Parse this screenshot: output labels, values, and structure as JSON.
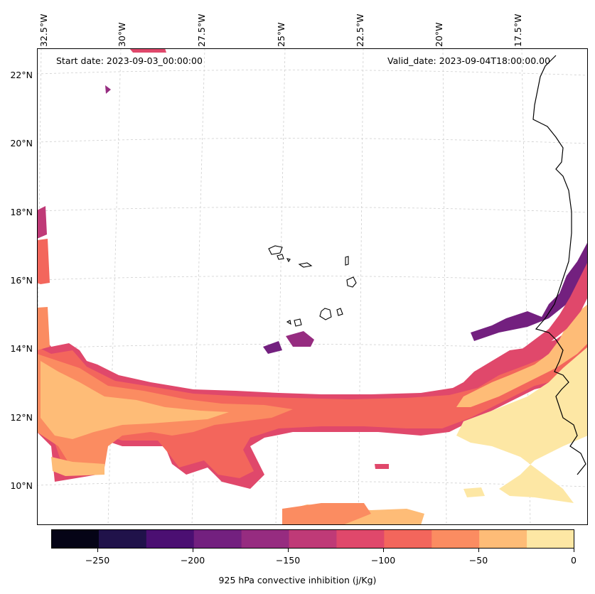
{
  "map": {
    "start_date": "Start date: 2023-09-03_00:00:00",
    "valid_date": "Valid_date: 2023-09-04T18:00:00.00",
    "lon_labels": [
      "32.5°W",
      "30°W",
      "27.5°W",
      "25°W",
      "22.5°W",
      "20°W",
      "17.5°W"
    ],
    "lat_labels": [
      "22°N",
      "20°N",
      "18°N",
      "16°N",
      "14°N",
      "12°N",
      "10°N"
    ],
    "field": "925 hPa convective inhibition"
  },
  "colorbar": {
    "title": "925 hPa convective inhibition (j/Kg)",
    "tick_labels": [
      "−250",
      "−200",
      "−150",
      "−100",
      "−50",
      "0"
    ],
    "colors": [
      "#050416",
      "#20124a",
      "#4b0f72",
      "#73207f",
      "#962c80",
      "#bf3a77",
      "#e0486b",
      "#f3665c",
      "#fb8c61",
      "#febc77",
      "#fde7a4"
    ],
    "levels": [
      -275,
      -250,
      -225,
      -200,
      -175,
      -150,
      -125,
      -100,
      -75,
      -50,
      -25,
      0
    ]
  }
}
